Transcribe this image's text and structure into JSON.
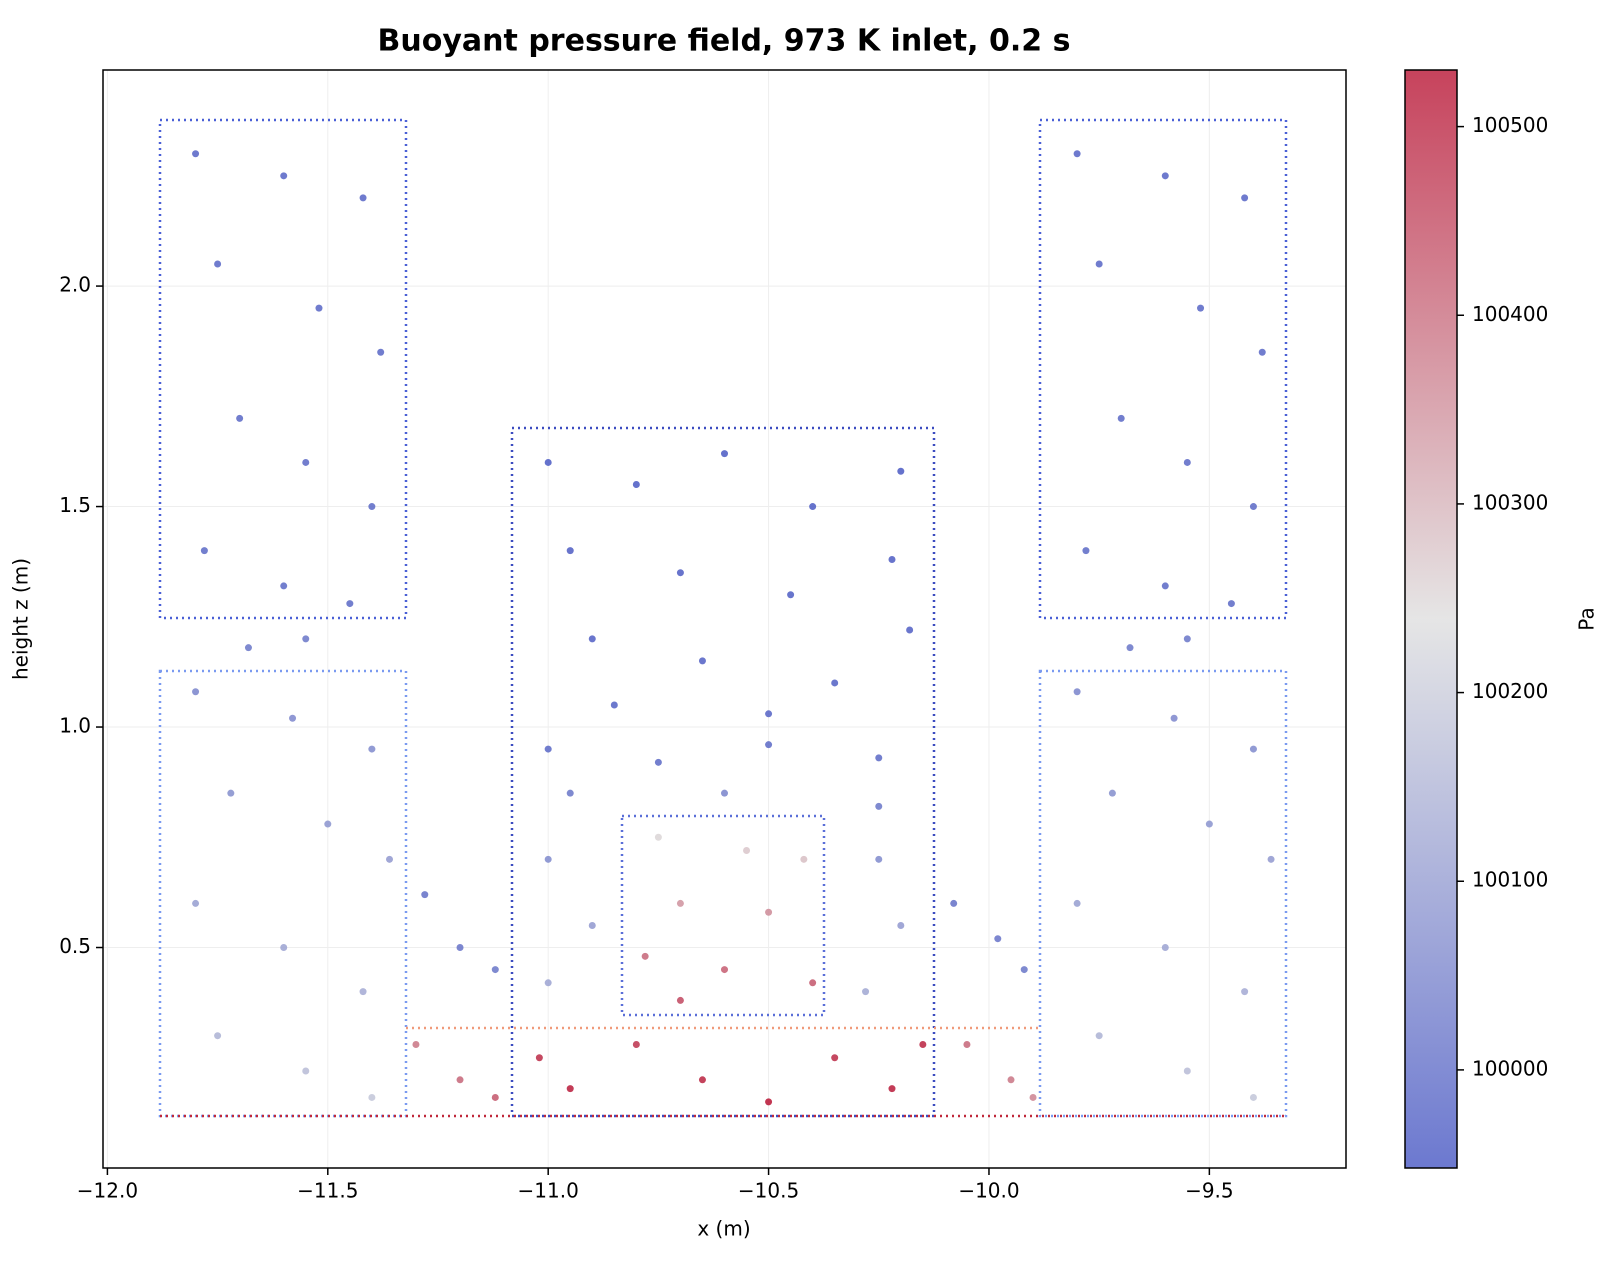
{
  "chart_data": {
    "type": "scatter",
    "title": "Buoyant pressure field, 973 K inlet, 0.2 s",
    "x_label": "x (m)",
    "y_label": "height z (m)",
    "colorbar_label": "Pa",
    "xlim": [
      -12.01,
      -9.19
    ],
    "ylim": [
      0.0,
      2.49
    ],
    "xticks": [
      {
        "value": -12.0,
        "label": "−12.0"
      },
      {
        "value": -11.5,
        "label": "−11.5"
      },
      {
        "value": -11.0,
        "label": "−11.0"
      },
      {
        "value": -10.5,
        "label": "−10.5"
      },
      {
        "value": -10.0,
        "label": "−10.0"
      },
      {
        "value": -9.5,
        "label": "−9.5"
      }
    ],
    "yticks": [
      0.5,
      {
        "value": 1.0,
        "label": "1.0"
      },
      1.5,
      {
        "value": 2.0,
        "label": "2.0"
      }
    ],
    "clim": [
      99948,
      100530
    ],
    "cticks": [
      100000,
      100100,
      100200,
      100300,
      100400,
      100500
    ],
    "cmap": [
      "#3b4cc0",
      "#dddddd",
      "#b40426"
    ],
    "grid": true,
    "x": [
      -11.8,
      -11.6,
      -11.42,
      -11.75,
      -11.52,
      -11.38,
      -11.7,
      -11.55,
      -11.4,
      -11.78,
      -11.6,
      -11.45,
      -11.8,
      -11.58,
      -11.4,
      -11.72,
      -11.5,
      -11.36,
      -11.8,
      -11.6,
      -11.42,
      -11.75,
      -11.55,
      -11.4,
      -11.68,
      -11.55,
      -11.28,
      -11.2,
      -11.12,
      -11.3,
      -11.2,
      -11.12,
      -11.0,
      -10.8,
      -10.6,
      -10.4,
      -10.2,
      -10.95,
      -10.7,
      -10.45,
      -10.22,
      -10.9,
      -10.65,
      -10.35,
      -10.18,
      -10.85,
      -10.5,
      -11.0,
      -10.75,
      -10.5,
      -10.25,
      -10.95,
      -10.6,
      -10.25,
      -11.0,
      -10.9,
      -11.0,
      -10.25,
      -10.2,
      -10.28,
      -10.75,
      -10.55,
      -10.42,
      -10.7,
      -10.5,
      -10.78,
      -10.6,
      -10.4,
      -10.7,
      -11.02,
      -10.95,
      -10.8,
      -10.65,
      -10.5,
      -10.35,
      -10.22,
      -10.15,
      -10.05,
      -9.95,
      -9.9,
      -10.08,
      -9.98,
      -9.92,
      -9.8,
      -9.6,
      -9.42,
      -9.75,
      -9.52,
      -9.38,
      -9.7,
      -9.55,
      -9.4,
      -9.78,
      -9.6,
      -9.45,
      -9.68,
      -9.55,
      -9.8,
      -9.58,
      -9.4,
      -9.72,
      -9.5,
      -9.36,
      -9.8,
      -9.6,
      -9.42,
      -9.75,
      -9.55,
      -9.4
    ],
    "y": [
      2.3,
      2.25,
      2.2,
      2.05,
      1.95,
      1.85,
      1.7,
      1.6,
      1.5,
      1.4,
      1.32,
      1.28,
      1.08,
      1.02,
      0.95,
      0.85,
      0.78,
      0.7,
      0.6,
      0.5,
      0.4,
      0.3,
      0.22,
      0.16,
      1.18,
      1.2,
      0.62,
      0.5,
      0.45,
      0.28,
      0.2,
      0.16,
      1.6,
      1.55,
      1.62,
      1.5,
      1.58,
      1.4,
      1.35,
      1.3,
      1.38,
      1.2,
      1.15,
      1.1,
      1.22,
      1.05,
      1.03,
      0.95,
      0.92,
      0.96,
      0.93,
      0.85,
      0.85,
      0.82,
      0.7,
      0.55,
      0.42,
      0.7,
      0.55,
      0.4,
      0.75,
      0.72,
      0.7,
      0.6,
      0.58,
      0.48,
      0.45,
      0.42,
      0.38,
      0.25,
      0.18,
      0.28,
      0.2,
      0.15,
      0.25,
      0.18,
      0.28,
      0.28,
      0.2,
      0.16,
      0.6,
      0.52,
      0.45,
      2.3,
      2.25,
      2.2,
      2.05,
      1.95,
      1.85,
      1.7,
      1.6,
      1.5,
      1.4,
      1.32,
      1.28,
      1.18,
      1.2,
      1.08,
      1.02,
      0.95,
      0.85,
      0.78,
      0.7,
      0.6,
      0.5,
      0.4,
      0.3,
      0.22,
      0.16
    ],
    "values": [
      99995,
      99995,
      99996,
      99998,
      99999,
      100000,
      100002,
      100003,
      100004,
      100005,
      100006,
      100006,
      100060,
      100065,
      100070,
      100080,
      100090,
      100100,
      100110,
      100120,
      100135,
      100150,
      100170,
      100190,
      100030,
      100030,
      100020,
      100025,
      100030,
      100380,
      100400,
      100420,
      99975,
      99975,
      99975,
      99977,
      99975,
      99980,
      99980,
      99982,
      99980,
      99985,
      99987,
      99988,
      99985,
      99990,
      99992,
      100000,
      100005,
      100005,
      100005,
      100030,
      100060,
      100030,
      100070,
      100100,
      100120,
      100070,
      100100,
      100130,
      100250,
      100270,
      100280,
      100340,
      100350,
      100400,
      100410,
      100420,
      100440,
      100480,
      100500,
      100470,
      100490,
      100510,
      100480,
      100500,
      100490,
      100400,
      100380,
      100360,
      100020,
      100025,
      100030,
      99995,
      99995,
      99996,
      99998,
      99999,
      100000,
      100002,
      100003,
      100004,
      100005,
      100006,
      100006,
      100030,
      100030,
      100060,
      100065,
      100070,
      100080,
      100090,
      100100,
      100110,
      100120,
      100135,
      100150,
      100170,
      100190
    ]
  }
}
